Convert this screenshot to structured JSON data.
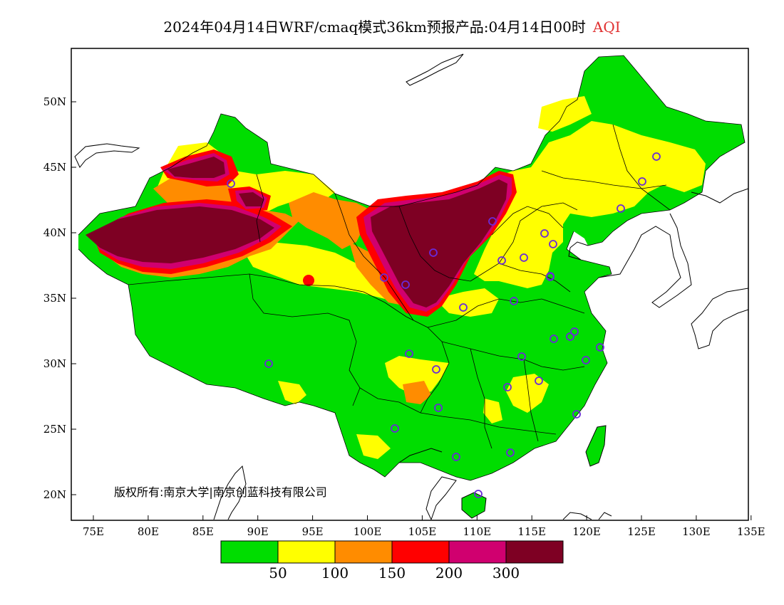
{
  "title": {
    "main": "2024年04月14日WRF/cmaq模式36km预报产品:04月14日00时",
    "variable": "AQI"
  },
  "copyright": "版权所有:南京大学|南京创蓝科技有限公司",
  "axes": {
    "lon_ticks": [
      "75E",
      "80E",
      "85E",
      "90E",
      "95E",
      "100E",
      "105E",
      "110E",
      "115E",
      "120E",
      "125E",
      "130E",
      "135E"
    ],
    "lat_ticks": [
      "50N",
      "45N",
      "40N",
      "35N",
      "30N",
      "25N",
      "20N"
    ]
  },
  "colorbar": {
    "colors": [
      "#00dd00",
      "#ffff00",
      "#ff8c00",
      "#ff0000",
      "#d0006f",
      "#7e0023"
    ],
    "labels": [
      "50",
      "100",
      "150",
      "200",
      "300"
    ]
  },
  "stations": 33
}
